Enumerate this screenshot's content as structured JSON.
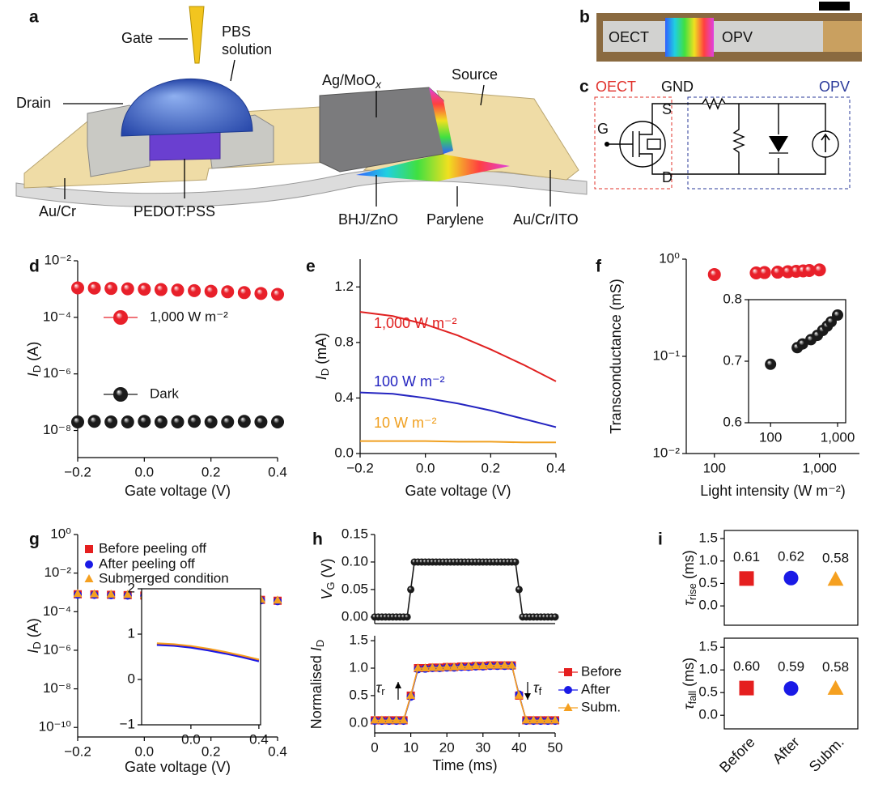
{
  "panel_a": {
    "label": "a",
    "gate": "Gate",
    "pbs": "PBS",
    "solution": "solution",
    "drain": "Drain",
    "ag_moo": {
      "text": "Ag/MoO",
      "sub": "x"
    },
    "source": "Source",
    "au_cr": "Au/Cr",
    "pedot": "PEDOT:PSS",
    "bhj": "BHJ/ZnO",
    "parylene": "Parylene",
    "au_cr_ito": "Au/Cr/ITO"
  },
  "panel_b": {
    "label": "b",
    "oect": "OECT",
    "opv": "OPV"
  },
  "panel_c": {
    "label": "c",
    "oect": "OECT",
    "opv": "OPV",
    "gnd": "GND",
    "s": "S",
    "g": "G",
    "d": "D"
  },
  "chart_data": [
    {
      "type": "scatter",
      "panel": "d",
      "xlabel": "Gate voltage (V)",
      "ylabel": [
        {
          "text": "I",
          "italic": true
        },
        {
          "text": "D",
          "sub": true
        },
        {
          "text": " (A)"
        }
      ],
      "x": [
        -0.2,
        -0.15,
        -0.1,
        -0.05,
        0,
        0.05,
        0.1,
        0.15,
        0.2,
        0.25,
        0.3,
        0.35,
        0.4
      ],
      "series": [
        {
          "name": "1,000 W m⁻²",
          "color": "#e8202a",
          "marker": "circle",
          "values": [
            0.0011,
            0.00108,
            0.00105,
            0.00102,
            0.00099,
            0.00096,
            0.00092,
            0.00088,
            0.00084,
            0.0008,
            0.00075,
            0.0007,
            0.00065
          ]
        },
        {
          "name": "Dark",
          "color": "#1a1a1a",
          "marker": "circle",
          "values": [
            2e-08,
            2.1e-08,
            2e-08,
            2e-08,
            2.1e-08,
            2e-08,
            2e-08,
            2.1e-08,
            2e-08,
            2e-08,
            2.1e-08,
            2e-08,
            2e-08
          ]
        }
      ],
      "xlim": [
        -0.2,
        0.4
      ],
      "xticks": [
        {
          "value": -0.2,
          "label": "−0.2"
        },
        {
          "value": 0,
          "label": "0.0"
        },
        0.2,
        0.4
      ],
      "ylim": [
        1.1e-09,
        0.01
      ],
      "ylog": true,
      "yticks": [
        {
          "value": 1e-08,
          "label": "10⁻⁸"
        },
        {
          "value": 1e-06,
          "label": "10⁻⁶"
        },
        {
          "value": 0.0001,
          "label": "10⁻⁴"
        },
        {
          "value": 0.01,
          "label": "10⁻²"
        }
      ]
    },
    {
      "type": "line",
      "panel": "e",
      "xlabel": "Gate voltage (V)",
      "ylabel": [
        {
          "text": "I",
          "italic": true
        },
        {
          "text": "D",
          "sub": true
        },
        {
          "text": " (mA)"
        }
      ],
      "x": [
        -0.2,
        -0.1,
        0,
        0.1,
        0.2,
        0.3,
        0.4
      ],
      "series": [
        {
          "name": "1,000 W m⁻²",
          "color": "#e02020",
          "values": [
            1.02,
            0.99,
            0.93,
            0.85,
            0.75,
            0.64,
            0.52
          ]
        },
        {
          "name": "100 W m⁻²",
          "color": "#2424c0",
          "values": [
            0.44,
            0.43,
            0.4,
            0.36,
            0.31,
            0.25,
            0.19
          ]
        },
        {
          "name": "10 W m⁻²",
          "color": "#f0a020",
          "values": [
            0.09,
            0.09,
            0.09,
            0.085,
            0.085,
            0.08,
            0.08
          ]
        }
      ],
      "xlim": [
        -0.2,
        0.4
      ],
      "xticks": [
        {
          "value": -0.2,
          "label": "−0.2"
        },
        {
          "value": 0,
          "label": "0.0"
        },
        0.2,
        0.4
      ],
      "ylim": [
        0,
        1.4
      ],
      "yticks": [
        {
          "value": 0,
          "label": "0.0"
        },
        0.4,
        0.8,
        1.2
      ]
    },
    {
      "type": "scatter",
      "panel": "f",
      "xlabel": "Light intensity (W m⁻²)",
      "ylabel": "Transconductance (mS)",
      "x": [
        100,
        250,
        300,
        400,
        500,
        600,
        700,
        800,
        1000
      ],
      "series": [
        {
          "color": "#e8202a",
          "marker": "circle",
          "values": [
            0.695,
            0.722,
            0.728,
            0.735,
            0.742,
            0.75,
            0.757,
            0.764,
            0.775
          ]
        }
      ],
      "xlim": [
        54,
        2400
      ],
      "xlog": true,
      "xticks": [
        100,
        {
          "value": 1000,
          "label": "1,000"
        }
      ],
      "ylim": [
        0.01,
        1
      ],
      "ylog": true,
      "yticks": [
        {
          "value": 0.01,
          "label": "10⁻²"
        },
        {
          "value": 0.1,
          "label": "10⁻¹"
        },
        {
          "value": 1,
          "label": "10⁰"
        }
      ],
      "inset": {
        "type": "scatter",
        "color": "#1a1a1a",
        "xlim": [
          47,
          1320
        ],
        "xlog": true,
        "xticks": [
          100,
          {
            "value": 1000,
            "label": "1,000"
          }
        ],
        "ylim": [
          0.6,
          0.8
        ],
        "yticks": [
          0.6,
          0.7,
          0.8
        ]
      }
    },
    {
      "type": "scatter",
      "panel": "g",
      "xlabel": "Gate voltage (V)",
      "ylabel": [
        {
          "text": "I",
          "italic": true
        },
        {
          "text": "D",
          "sub": true
        },
        {
          "text": " (A)"
        }
      ],
      "x": [
        -0.2,
        -0.15,
        -0.1,
        -0.05,
        0,
        0.05,
        0.1,
        0.15,
        0.2,
        0.25,
        0.3,
        0.35,
        0.4
      ],
      "series": [
        {
          "name": "Before peeling off",
          "color": "#e51f1f",
          "marker": "square",
          "values": [
            0.0008,
            0.00078,
            0.00075,
            0.00072,
            0.00069,
            0.00065,
            0.00061,
            0.00057,
            0.00053,
            0.00049,
            0.00045,
            0.00041,
            0.00037
          ]
        },
        {
          "name": "After peeling off",
          "color": "#1a1ae6",
          "marker": "circle",
          "values": [
            0.00076,
            0.00074,
            0.00071,
            0.00068,
            0.00065,
            0.00062,
            0.00058,
            0.00054,
            0.0005,
            0.00047,
            0.00043,
            0.00039,
            0.00035
          ]
        },
        {
          "name": "Submerged condition",
          "color": "#f5a020",
          "marker": "triangle",
          "values": [
            0.00084,
            0.00082,
            0.00079,
            0.00076,
            0.00072,
            0.00068,
            0.00064,
            0.0006,
            0.00056,
            0.00051,
            0.00047,
            0.00043,
            0.00039
          ]
        }
      ],
      "xlim": [
        -0.2,
        0.4
      ],
      "xticks": [
        {
          "value": -0.2,
          "label": "−0.2"
        },
        {
          "value": 0,
          "label": "0.0"
        },
        0.2,
        0.4
      ],
      "ylim": [
        3.2e-11,
        1
      ],
      "ylog": true,
      "yticks": [
        {
          "value": 1e-10,
          "label": "10⁻¹⁰"
        },
        {
          "value": 1e-08,
          "label": "10⁻⁸"
        },
        {
          "value": 1e-06,
          "label": "10⁻⁶"
        },
        {
          "value": 0.0001,
          "label": "10⁻⁴"
        },
        {
          "value": 0.01,
          "label": "10⁻²"
        },
        {
          "value": 1,
          "label": "10⁰"
        }
      ],
      "inset": {
        "type": "line",
        "x": [
          -0.2,
          -0.1,
          0,
          0.1,
          0.2,
          0.3,
          0.4
        ],
        "series": [
          {
            "color": "#e51f1f",
            "values": [
              0.78,
              0.76,
              0.72,
              0.66,
              0.59,
              0.51,
              0.42
            ]
          },
          {
            "color": "#1a1ae6",
            "values": [
              0.76,
              0.74,
              0.7,
              0.64,
              0.57,
              0.49,
              0.4
            ]
          },
          {
            "color": "#f5a020",
            "values": [
              0.8,
              0.78,
              0.74,
              0.68,
              0.61,
              0.53,
              0.44
            ]
          }
        ],
        "xlim": [
          -0.29,
          0.41
        ],
        "xticks": [
          {
            "value": 0,
            "label": "0.0"
          },
          0.4
        ],
        "ylim": [
          -1,
          2
        ],
        "yticks": [
          {
            "value": -1,
            "label": "−1"
          },
          0,
          1,
          2
        ]
      }
    },
    {
      "type": "scatter",
      "panel": "h",
      "ylabel": [
        {
          "text": "V",
          "italic": true
        },
        {
          "text": "G",
          "sub": true
        },
        {
          "text": " (V)"
        }
      ],
      "x": [
        0,
        1,
        2,
        3,
        4,
        5,
        6,
        7,
        8,
        9,
        10,
        11,
        12,
        13,
        14,
        15,
        16,
        17,
        18,
        19,
        20,
        21,
        22,
        23,
        24,
        25,
        26,
        27,
        28,
        29,
        30,
        31,
        32,
        33,
        34,
        35,
        36,
        37,
        38,
        39,
        40,
        41,
        42,
        43,
        44,
        45,
        46,
        47,
        48,
        49,
        50
      ],
      "series": [
        {
          "color": "#1a1a1a",
          "marker": "circle",
          "line": true,
          "values": [
            0,
            0,
            0,
            0,
            0,
            0,
            0,
            0,
            0,
            0,
            0.05,
            0.1,
            0.1,
            0.1,
            0.1,
            0.1,
            0.1,
            0.1,
            0.1,
            0.1,
            0.1,
            0.1,
            0.1,
            0.1,
            0.1,
            0.1,
            0.1,
            0.1,
            0.1,
            0.1,
            0.1,
            0.1,
            0.1,
            0.1,
            0.1,
            0.1,
            0.1,
            0.1,
            0.1,
            0.1,
            0.05,
            0,
            0,
            0,
            0,
            0,
            0,
            0,
            0,
            0,
            0
          ]
        }
      ],
      "xlim": [
        0,
        50
      ],
      "ylim": [
        -0.012,
        0.15
      ],
      "yticks": [
        {
          "value": 0,
          "label": "0.00"
        },
        {
          "value": 0.05,
          "label": "0.05"
        },
        {
          "value": 0.1,
          "label": "0.10"
        },
        {
          "value": 0.15,
          "label": "0.15"
        }
      ]
    },
    {
      "type": "scatter",
      "xlabel": "Time (ms)",
      "ylabel": [
        {
          "text": "Normalised "
        },
        {
          "text": "I",
          "italic": true
        },
        {
          "text": "D",
          "sub": true
        }
      ],
      "x": [
        0,
        2,
        4,
        6,
        8,
        10,
        12,
        14,
        16,
        18,
        20,
        22,
        24,
        26,
        28,
        30,
        32,
        34,
        36,
        38,
        40,
        42,
        44,
        46,
        48,
        50
      ],
      "series": [
        {
          "name": "Before",
          "color": "#e51f1f",
          "marker": "square",
          "line": true,
          "values": [
            0.05,
            0.05,
            0.05,
            0.05,
            0.05,
            0.5,
            1.0,
            1.0,
            1.01,
            1.01,
            1.02,
            1.02,
            1.03,
            1.03,
            1.04,
            1.04,
            1.05,
            1.05,
            1.05,
            1.05,
            0.5,
            0.05,
            0.05,
            0.05,
            0.05,
            0.05
          ]
        },
        {
          "name": "After",
          "color": "#1a1ae6",
          "marker": "circle",
          "line": true,
          "values": [
            0.04,
            0.04,
            0.04,
            0.04,
            0.04,
            0.48,
            0.98,
            0.99,
            1.0,
            1.0,
            1.01,
            1.01,
            1.02,
            1.02,
            1.03,
            1.03,
            1.04,
            1.04,
            1.04,
            1.04,
            0.52,
            0.04,
            0.04,
            0.04,
            0.04,
            0.04
          ]
        },
        {
          "name": "Subm.",
          "color": "#f5a020",
          "marker": "triangle",
          "line": true,
          "values": [
            0.05,
            0.05,
            0.05,
            0.05,
            0.05,
            0.5,
            1.0,
            1.0,
            1.01,
            1.01,
            1.02,
            1.02,
            1.03,
            1.03,
            1.04,
            1.04,
            1.05,
            1.05,
            1.05,
            1.05,
            0.5,
            0.05,
            0.05,
            0.05,
            0.05,
            0.05
          ]
        }
      ],
      "annotations": [
        [
          {
            "text": "τ",
            "italic": true
          },
          {
            "text": "r",
            "sub": true
          }
        ],
        [
          {
            "text": "τ",
            "italic": true
          },
          {
            "text": "f",
            "sub": true
          }
        ]
      ],
      "xlim": [
        0,
        50
      ],
      "xticks": [
        0,
        10,
        20,
        30,
        40,
        50
      ],
      "ylim": [
        -0.18,
        1.59
      ],
      "yticks": [
        {
          "value": 0,
          "label": "0.0"
        },
        0.5,
        {
          "value": 1,
          "label": "1.0"
        },
        1.5
      ]
    },
    {
      "type": "dot",
      "panel": "i",
      "ylabel": [
        {
          "text": "τ",
          "italic": true
        },
        {
          "text": "rise",
          "sub": true
        },
        {
          "text": " (ms)"
        }
      ],
      "values": [
        0.61,
        0.62,
        0.58
      ],
      "value_labels": [
        "0.61",
        "0.62",
        "0.58"
      ],
      "colors": [
        "#e51f1f",
        "#1a1ae6",
        "#f5a020"
      ],
      "markers": [
        "square",
        "circle",
        "triangle"
      ],
      "ylim": [
        -0.43,
        1.68
      ],
      "yticks": [
        {
          "value": 0,
          "label": "0.0"
        },
        0.5,
        {
          "value": 1,
          "label": "1.0"
        },
        1.5
      ]
    },
    {
      "type": "dot",
      "ylabel": [
        {
          "text": "τ",
          "italic": true
        },
        {
          "text": "fall",
          "sub": true
        },
        {
          "text": " (ms)"
        }
      ],
      "categories": [
        "Before",
        "After",
        "Subm."
      ],
      "values": [
        0.6,
        0.59,
        0.58
      ],
      "value_labels": [
        "0.60",
        "0.59",
        "0.58"
      ],
      "colors": [
        "#e51f1f",
        "#1a1ae6",
        "#f5a020"
      ],
      "markers": [
        "square",
        "circle",
        "triangle"
      ],
      "ylim": [
        -0.3,
        1.7
      ],
      "yticks": [
        {
          "value": 0,
          "label": "0.0"
        },
        0.5,
        {
          "value": 1,
          "label": "1.0"
        },
        1.5
      ]
    }
  ]
}
